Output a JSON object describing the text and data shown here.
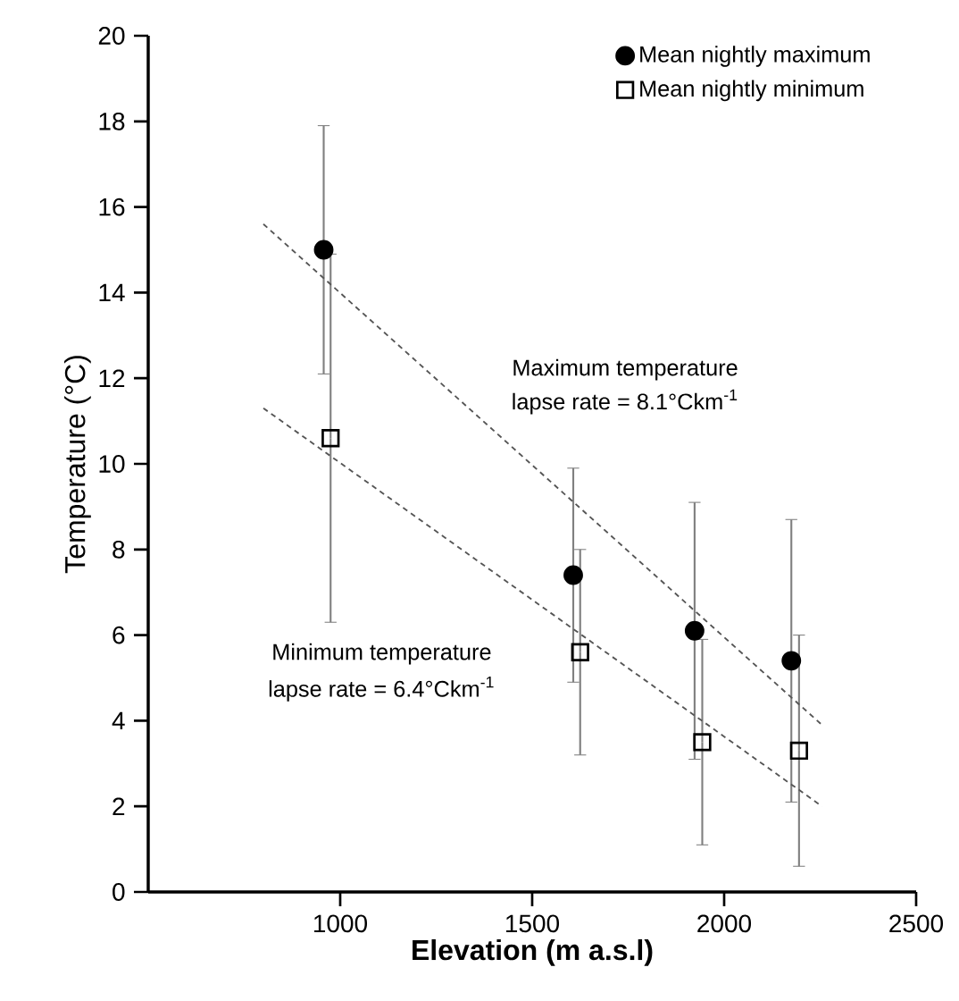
{
  "chart_data": {
    "type": "scatter",
    "xlabel": "Elevation (m a.s.l)",
    "ylabel": "Temperature (°C)",
    "xlim": [
      500,
      2500
    ],
    "xticks": [
      1000,
      1500,
      2000,
      2500
    ],
    "ylim": [
      0,
      20
    ],
    "yticks": [
      0,
      2,
      4,
      6,
      8,
      10,
      12,
      14,
      16,
      18,
      20
    ],
    "legend": "top right",
    "series": [
      {
        "name": "Mean nightly maximum",
        "marker": "circle",
        "color": "#000000",
        "x": [
          957,
          1607,
          1923,
          2175
        ],
        "values": [
          15.0,
          7.4,
          6.1,
          5.4
        ],
        "errors": [
          2.9,
          2.5,
          3.0,
          3.3
        ]
      },
      {
        "name": "Mean nightly minimum",
        "marker": "square",
        "color": "#000000",
        "x": [
          975,
          1625,
          1943,
          2195
        ],
        "values": [
          10.6,
          5.6,
          3.5,
          3.3
        ],
        "errors": [
          4.3,
          2.4,
          2.4,
          2.7
        ]
      },
      {
        "type": "line",
        "line_style": "dashed",
        "color": "#555555",
        "x": [
          800,
          2255
        ],
        "values": [
          15.6,
          3.9
        ]
      },
      {
        "type": "line",
        "line_style": "dashed",
        "color": "#555555",
        "x": [
          800,
          2255
        ],
        "values": [
          11.3,
          2.0
        ]
      }
    ],
    "annotations": [
      "Maximum temperature",
      "lapse rate = 8.1°Ckm$^{-1}$",
      "Minimum temperature",
      "lapse rate = 6.4°Ckm$^{-1}$"
    ]
  }
}
